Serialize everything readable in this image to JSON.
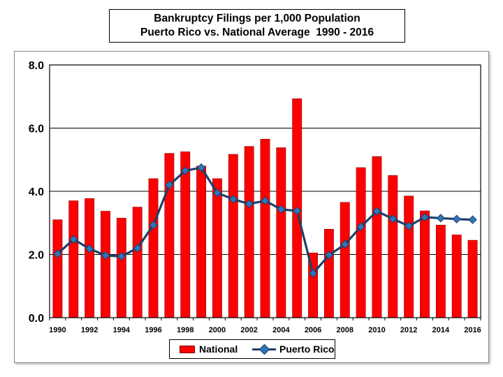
{
  "title": {
    "line1": "Bankruptcy Filings per 1,000 Population",
    "line2": "Puerto Rico vs. National Average  1990 - 2016"
  },
  "legend": {
    "national": "National",
    "puerto_rico": "Puerto Rico"
  },
  "colors": {
    "national_bar": "#ff0000",
    "puerto_rico_line": "#1f3f6a",
    "puerto_rico_marker": "#2e75b6",
    "plot_border": "#000000"
  },
  "chart_data": {
    "type": "bar",
    "title": "Bankruptcy Filings per 1,000 Population Puerto Rico vs. National Average  1990 - 2016",
    "xlabel": "",
    "ylabel": "",
    "ylim": [
      0,
      8
    ],
    "yticks": [
      "0.0",
      "2.0",
      "4.0",
      "6.0",
      "8.0"
    ],
    "xticks": [
      "1990",
      "1992",
      "1994",
      "1996",
      "1998",
      "2000",
      "2002",
      "2004",
      "2006",
      "2008",
      "2010",
      "2012",
      "2014",
      "2016"
    ],
    "grid": true,
    "legend_position": "bottom",
    "categories": [
      1990,
      1991,
      1992,
      1993,
      1994,
      1995,
      1996,
      1997,
      1998,
      1999,
      2000,
      2001,
      2002,
      2003,
      2004,
      2005,
      2006,
      2007,
      2008,
      2009,
      2010,
      2011,
      2012,
      2013,
      2014,
      2015,
      2016
    ],
    "series": [
      {
        "name": "National",
        "type": "bar",
        "values": [
          3.1,
          3.7,
          3.77,
          3.37,
          3.15,
          3.5,
          4.4,
          5.2,
          5.25,
          4.8,
          4.4,
          5.17,
          5.42,
          5.65,
          5.38,
          6.93,
          2.05,
          2.8,
          3.65,
          4.75,
          5.1,
          4.5,
          3.85,
          3.38,
          2.93,
          2.62,
          2.45
        ]
      },
      {
        "name": "Puerto Rico",
        "type": "line",
        "values": [
          2.02,
          2.48,
          2.18,
          1.97,
          1.94,
          2.2,
          2.93,
          4.2,
          4.65,
          4.75,
          3.95,
          3.75,
          3.6,
          3.7,
          3.43,
          3.38,
          1.4,
          1.98,
          2.32,
          2.88,
          3.37,
          3.13,
          2.9,
          3.18,
          3.15,
          3.12,
          3.1
        ]
      }
    ]
  }
}
